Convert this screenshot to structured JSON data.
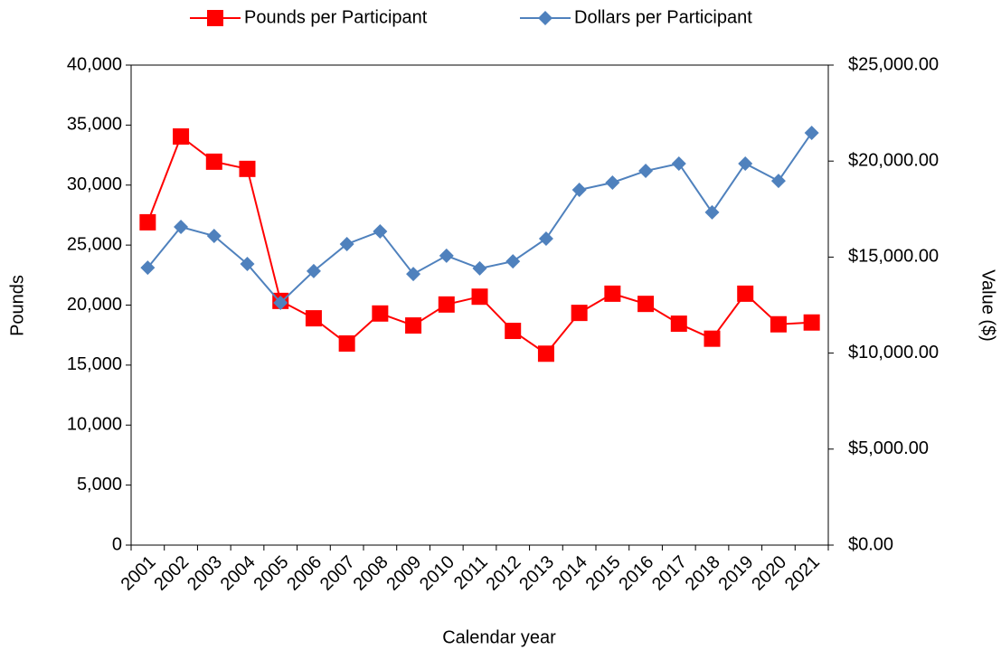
{
  "chart_data": {
    "type": "line",
    "x_label": "Calendar year",
    "y_label": "Pounds",
    "y2_label": "Value ($)",
    "categories": [
      "2001",
      "2002",
      "2003",
      "2004",
      "2005",
      "2006",
      "2007",
      "2008",
      "2009",
      "2010",
      "2011",
      "2012",
      "2013",
      "2014",
      "2015",
      "2016",
      "2017",
      "2018",
      "2019",
      "2020",
      "2021"
    ],
    "series": [
      {
        "name": "Pounds per Participant",
        "color": "#ff0000",
        "marker": "square",
        "values": [
          26900,
          34050,
          31950,
          31350,
          20350,
          18900,
          16800,
          19300,
          18300,
          20050,
          20700,
          17850,
          15950,
          19350,
          20950,
          20100,
          18450,
          17200,
          20950,
          18400,
          18550
        ]
      },
      {
        "name": "Dollars per Participant",
        "color": "#4f81bd",
        "marker": "diamond",
        "axis": "y2",
        "values": [
          14450,
          16570,
          16100,
          14640,
          12620,
          14270,
          15680,
          16340,
          14120,
          15070,
          14410,
          14780,
          15960,
          18500,
          18880,
          19490,
          19870,
          17330,
          19870,
          18970,
          21470
        ]
      }
    ],
    "ylim": [
      0,
      40000
    ],
    "yticks": [
      0,
      {
        "value": 5000,
        "label": "5,000"
      },
      {
        "value": 10000,
        "label": "10,000"
      },
      {
        "value": 15000,
        "label": "15,000"
      },
      {
        "value": 20000,
        "label": "20,000"
      },
      {
        "value": 25000,
        "label": "25,000"
      },
      {
        "value": 30000,
        "label": "30,000"
      },
      {
        "value": 35000,
        "label": "35,000"
      },
      {
        "value": 40000,
        "label": "40,000"
      }
    ],
    "y2lim": [
      0,
      25000
    ],
    "y2ticks": [
      {
        "value": 0,
        "label": "$0.00"
      },
      {
        "value": 5000,
        "label": "$5,000.00"
      },
      {
        "value": 10000,
        "label": "$10,000.00"
      },
      {
        "value": 15000,
        "label": "$15,000.00"
      },
      {
        "value": 20000,
        "label": "$20,000.00"
      },
      {
        "value": 25000,
        "label": "$25,000.00"
      }
    ],
    "legend": "top",
    "grid": false
  }
}
